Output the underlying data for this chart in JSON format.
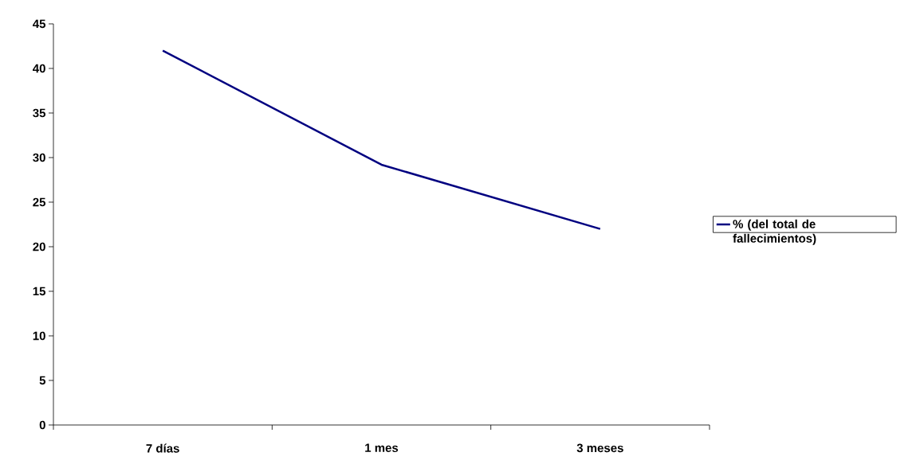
{
  "chart_data": {
    "type": "line",
    "categories": [
      "7 días",
      "1 mes",
      "3 meses"
    ],
    "series": [
      {
        "name": "% (del total de fallecimientos)",
        "color": "#000080",
        "values": [
          42,
          29.2,
          22
        ]
      }
    ],
    "ylim": [
      0,
      45
    ],
    "yticks": [
      0,
      5,
      10,
      15,
      20,
      25,
      30,
      35,
      40,
      45
    ],
    "grid": false,
    "legend": "right",
    "marker": "none",
    "line_style": "solid"
  }
}
